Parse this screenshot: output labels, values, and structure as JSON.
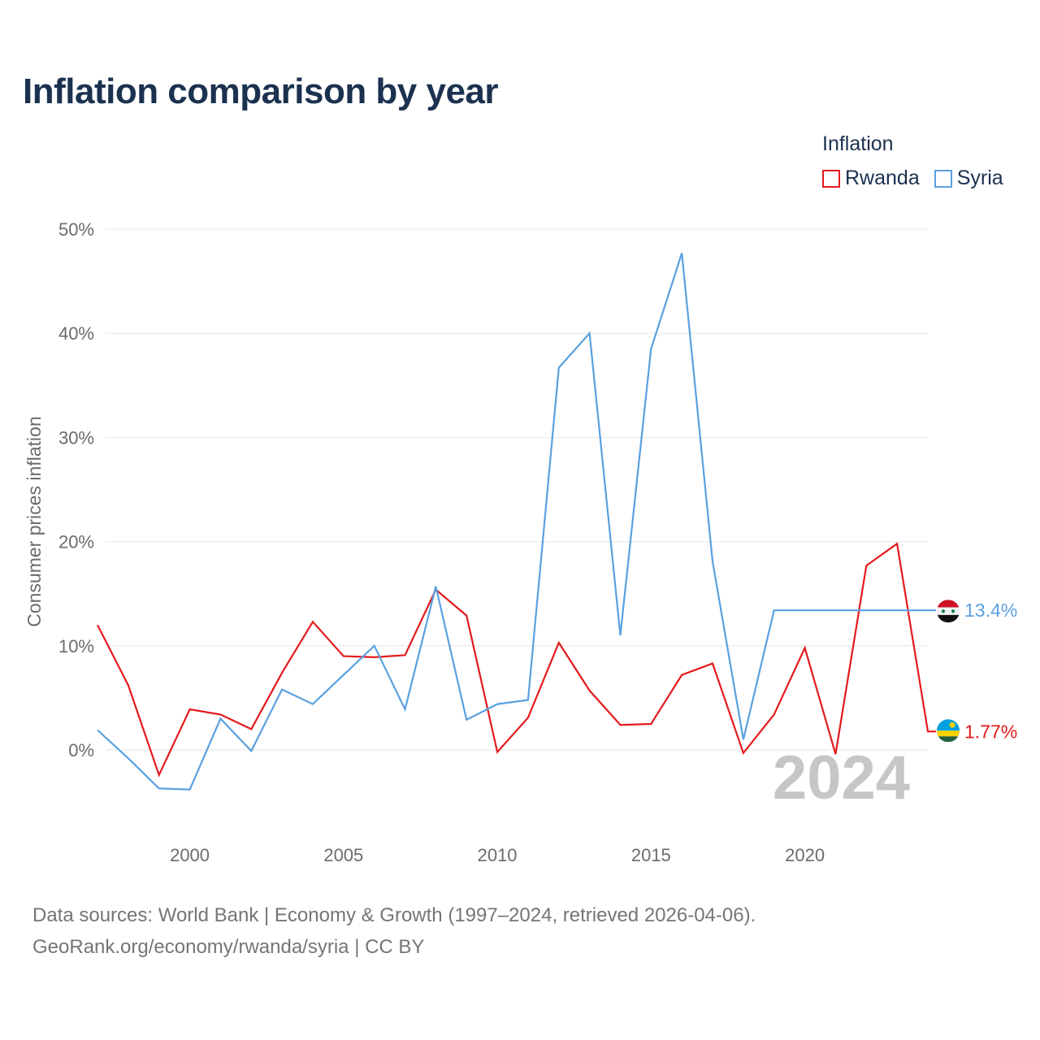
{
  "title": "Inflation comparison by year",
  "legend": {
    "title": "Inflation",
    "items": [
      {
        "name": "Rwanda",
        "color": "#e31a1c"
      },
      {
        "name": "Syria",
        "color": "#5aa0e0"
      }
    ]
  },
  "source_line1": "Data sources: World Bank | Economy & Growth (1997–2024, retrieved 2026-04-06).",
  "source_line2": "GeoRank.org/economy/rwanda/syria | CC BY",
  "chart_data": {
    "type": "line",
    "title": "Inflation comparison by year",
    "xlabel": "",
    "ylabel": "Consumer prices inflation",
    "x": [
      1997,
      1998,
      1999,
      2000,
      2001,
      2002,
      2003,
      2004,
      2005,
      2006,
      2007,
      2008,
      2009,
      2010,
      2011,
      2012,
      2013,
      2014,
      2015,
      2016,
      2017,
      2018,
      2019,
      2020,
      2021,
      2022,
      2023,
      2024
    ],
    "xlim": [
      1997,
      2024
    ],
    "xticks": [
      2000,
      2005,
      2010,
      2015,
      2020
    ],
    "ylim": [
      -7,
      53
    ],
    "yticks": [
      0,
      10,
      20,
      30,
      40,
      50
    ],
    "ytick_labels": [
      "0%",
      "10%",
      "20%",
      "30%",
      "40%",
      "50%"
    ],
    "grid": true,
    "watermark": "2024",
    "series": [
      {
        "name": "Rwanda",
        "color": "#e31a1c",
        "values": [
          12.0,
          6.2,
          -2.4,
          3.9,
          3.4,
          2.0,
          7.4,
          12.3,
          9.0,
          8.9,
          9.1,
          15.4,
          12.9,
          -0.2,
          3.1,
          10.3,
          5.7,
          2.4,
          2.5,
          7.2,
          8.3,
          -0.3,
          3.4,
          9.8,
          -0.4,
          17.7,
          19.8,
          1.77
        ],
        "end_label": "1.77%",
        "end_value": 1.77,
        "flag_icon": "rwanda-flag-icon"
      },
      {
        "name": "Syria",
        "color": "#5aa0e0",
        "values": [
          1.9,
          -0.8,
          -3.7,
          -3.8,
          3.0,
          -0.1,
          5.8,
          4.4,
          7.2,
          10.0,
          3.9,
          15.7,
          2.9,
          4.4,
          4.8,
          36.7,
          40.0,
          11.0,
          38.5,
          47.7,
          18.1,
          1.0,
          13.4,
          null,
          null,
          null,
          null,
          13.4
        ],
        "end_label": "13.4%",
        "end_value": 13.4,
        "flag_icon": "syria-flag-icon"
      }
    ]
  }
}
